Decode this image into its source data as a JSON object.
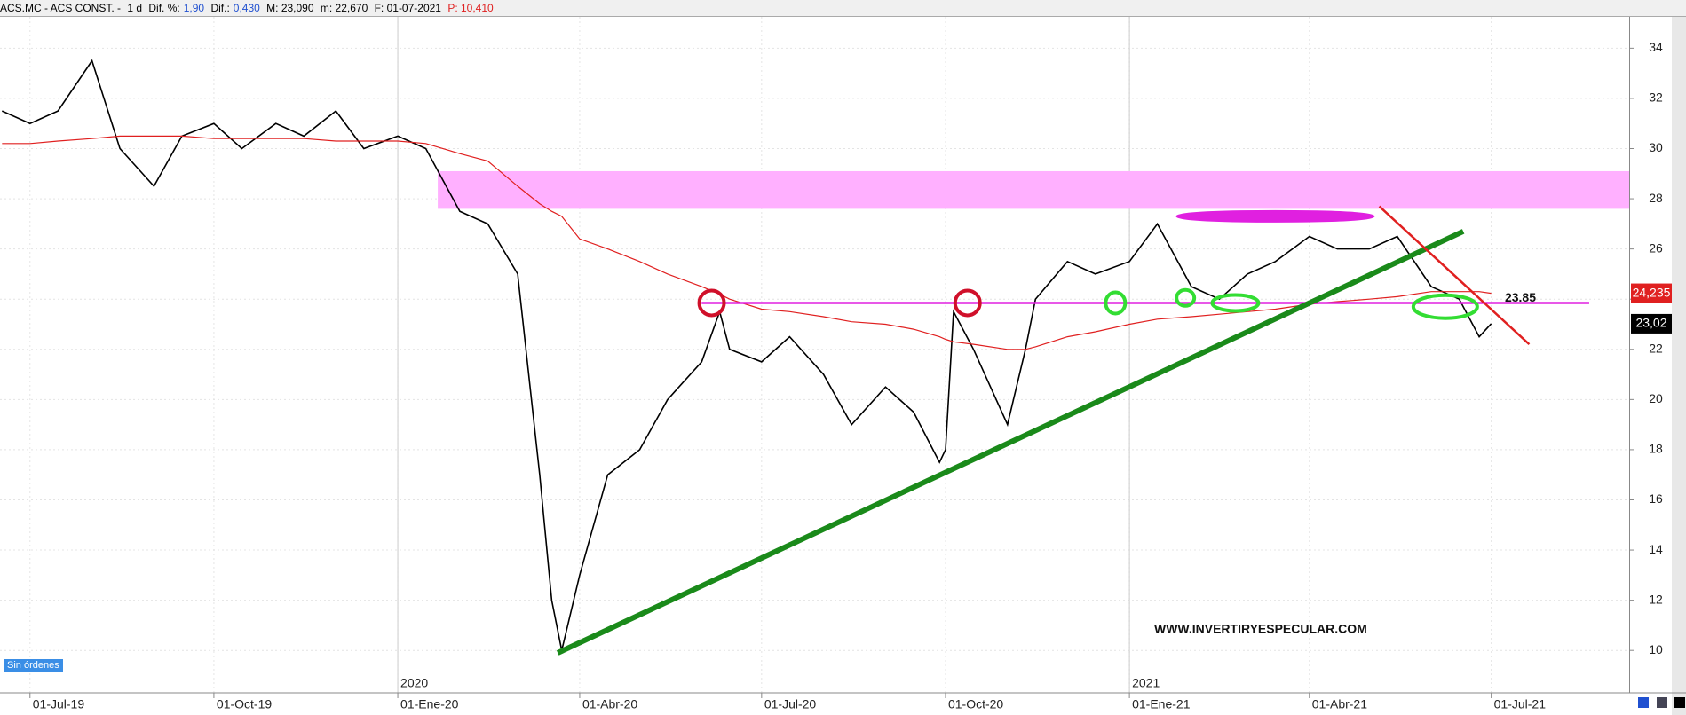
{
  "header": {
    "symbol": "ACS.MC - ACS CONST. -",
    "period": "1 d",
    "dif_pct_label": "Dif. %:",
    "dif_pct": "1,90",
    "dif_label": "Dif.:",
    "dif": "0,430",
    "max": "M: 23,090",
    "min": "m: 22,670",
    "date": "F: 01-07-2021",
    "p": "P: 10,410"
  },
  "orders_button": "Sin órdenes",
  "chart_data": {
    "type": "line",
    "x": [
      "2019-06-17",
      "2019-07-01",
      "2019-07-15",
      "2019-08-01",
      "2019-08-15",
      "2019-09-01",
      "2019-09-15",
      "2019-10-01",
      "2019-10-15",
      "2019-11-01",
      "2019-11-15",
      "2019-12-01",
      "2019-12-15",
      "2020-01-01",
      "2020-01-15",
      "2020-02-01",
      "2020-02-15",
      "2020-03-01",
      "2020-03-12",
      "2020-03-18",
      "2020-03-23",
      "2020-04-01",
      "2020-04-15",
      "2020-05-01",
      "2020-05-15",
      "2020-06-01",
      "2020-06-10",
      "2020-06-15",
      "2020-07-01",
      "2020-07-15",
      "2020-08-01",
      "2020-08-15",
      "2020-09-01",
      "2020-09-15",
      "2020-09-28",
      "2020-10-01",
      "2020-10-05",
      "2020-10-15",
      "2020-11-01",
      "2020-11-10",
      "2020-11-15",
      "2020-12-01",
      "2020-12-15",
      "2021-01-01",
      "2021-01-15",
      "2021-02-01",
      "2021-02-15",
      "2021-03-01",
      "2021-03-15",
      "2021-04-01",
      "2021-04-15",
      "2021-05-01",
      "2021-05-15",
      "2021-06-01",
      "2021-06-15",
      "2021-06-25",
      "2021-07-01"
    ],
    "series": [
      {
        "name": "ACS.MC",
        "color": "#000000",
        "values": [
          31.5,
          31,
          31.5,
          33.5,
          30,
          28.5,
          30.5,
          31,
          30,
          31,
          30.5,
          31.5,
          30,
          30.5,
          30,
          27.5,
          27,
          25,
          17,
          12,
          10,
          13,
          17,
          18,
          20,
          21.5,
          23.5,
          22,
          21.5,
          22.5,
          21,
          19,
          20.5,
          19.5,
          17.5,
          18,
          23.5,
          22,
          19,
          22,
          24,
          25.5,
          25,
          25.5,
          27,
          24.5,
          24,
          25,
          25.5,
          26.5,
          26,
          26,
          26.5,
          24.5,
          24,
          22.5,
          23.02
        ]
      },
      {
        "name": "MA",
        "color": "#e02020",
        "values": [
          30.2,
          30.2,
          30.3,
          30.4,
          30.5,
          30.5,
          30.5,
          30.4,
          30.4,
          30.4,
          30.4,
          30.3,
          30.3,
          30.3,
          30.2,
          29.8,
          29.5,
          28.5,
          27.8,
          27.5,
          27.3,
          26.4,
          26,
          25.5,
          25,
          24.5,
          24.2,
          24,
          23.6,
          23.5,
          23.3,
          23.1,
          23,
          22.8,
          22.5,
          22.4,
          22.3,
          22.2,
          22,
          22,
          22.1,
          22.5,
          22.7,
          23,
          23.2,
          23.3,
          23.4,
          23.5,
          23.6,
          23.8,
          23.9,
          24,
          24.1,
          24.3,
          24.3,
          24.3,
          24.235
        ]
      }
    ],
    "xlim": [
      "2019-06-16",
      "2021-09-08"
    ],
    "xticks": [
      {
        "value": "2019-07-01",
        "label": "01-Jul-19"
      },
      {
        "value": "2019-10-01",
        "label": "01-Oct-19"
      },
      {
        "value": "2020-01-01",
        "label": "01-Ene-20"
      },
      {
        "value": "2020-04-01",
        "label": "01-Abr-20"
      },
      {
        "value": "2020-07-01",
        "label": "01-Jul-20"
      },
      {
        "value": "2020-10-01",
        "label": "01-Oct-20"
      },
      {
        "value": "2021-01-01",
        "label": "01-Ene-21"
      },
      {
        "value": "2021-04-01",
        "label": "01-Abr-21"
      },
      {
        "value": "2021-07-01",
        "label": "01-Jul-21"
      }
    ],
    "year_markers": [
      {
        "x": "2020-01-01",
        "label": "2020"
      },
      {
        "x": "2021-01-01",
        "label": "2021"
      }
    ],
    "ylim": [
      8.31,
      35.25
    ],
    "yticks": [
      10,
      12,
      14,
      16,
      18,
      20,
      22,
      24,
      26,
      28,
      30,
      32,
      34
    ],
    "grid": true,
    "resistance_zone": {
      "x": "2020-01-21",
      "y": [
        27.6,
        29.1
      ],
      "color": "#ffb0ff"
    },
    "support_line": {
      "x": [
        "2020-06-01",
        "2021-08-19"
      ],
      "value": 23.85,
      "label": "23.85",
      "color": "#e020e0"
    },
    "trend_lines": [
      {
        "x": [
          "2020-03-21",
          "2021-06-17"
        ],
        "y": [
          9.9,
          26.7
        ],
        "color": "#1a8a1a"
      },
      {
        "x": [
          "2021-05-06",
          "2021-07-20"
        ],
        "y": [
          27.7,
          22.2
        ],
        "color": "#e02020"
      }
    ],
    "highlights": [
      {
        "x": "2020-06-06",
        "y": 23.85,
        "color": "#d0102a"
      },
      {
        "x": "2020-10-12",
        "y": 23.85,
        "color": "#d0102a"
      },
      {
        "x": "2020-12-25",
        "y": 23.85,
        "color": "#33dd33"
      },
      {
        "x": "2021-01-29",
        "y": 24.05,
        "color": "#33dd33"
      },
      {
        "x": "2021-02-23",
        "y": 23.85,
        "color": "#33dd33"
      },
      {
        "x": "2021-06-08",
        "y": 23.7,
        "color": "#33dd33"
      },
      {
        "x": "2021-03-15",
        "y": 27.3,
        "color": "#e020e0"
      }
    ],
    "ma_last": {
      "value": 24.235,
      "label": "24,235"
    },
    "last_price": {
      "value": 23.02,
      "label": "23,02"
    },
    "watermark": "WWW.INVERTIRYESPECULAR.COM"
  }
}
